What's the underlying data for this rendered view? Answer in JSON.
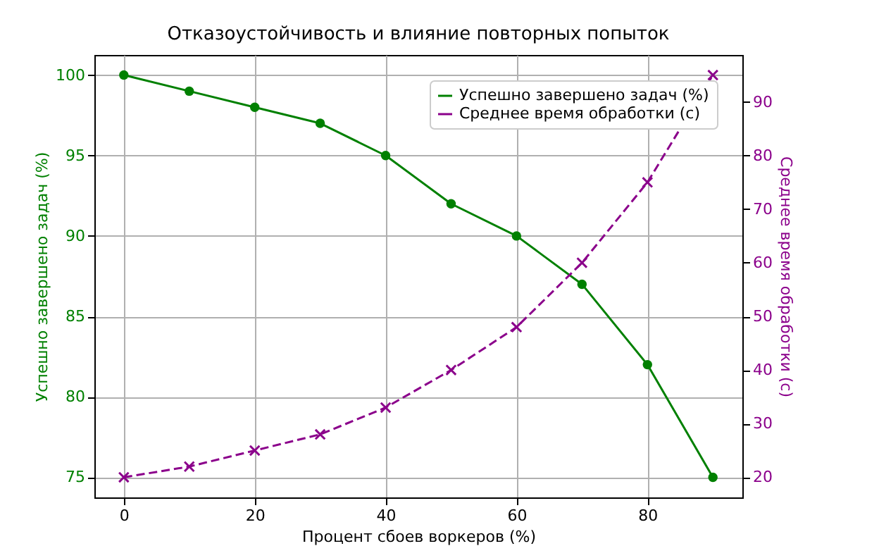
{
  "chart_data": {
    "type": "line",
    "title": "Отказоустойчивость и влияние повторных попыток",
    "xlabel": "Процент сбоев воркеров (%)",
    "ylabel": "Успешно завершено задач (%)",
    "y2label": "Среднее время обработки (с)",
    "x": [
      0,
      10,
      20,
      30,
      40,
      50,
      60,
      70,
      80,
      90
    ],
    "series": [
      {
        "name": "Успешно завершено задач (%)",
        "color": "#008000",
        "marker": "circle",
        "line_style": "solid",
        "values": [
          100,
          99,
          98,
          97,
          95,
          92,
          90,
          87,
          82,
          75
        ]
      },
      {
        "name": "Среднее время обработки (с)",
        "color": "#8b008b",
        "marker": "cross",
        "line_style": "dashed",
        "axis": "y2",
        "values": [
          20,
          22,
          25,
          28,
          33,
          40,
          48,
          60,
          75,
          95
        ]
      }
    ],
    "xlim": [
      -4.5,
      94.5
    ],
    "xticks": [
      0,
      20,
      40,
      60,
      80
    ],
    "ylim": [
      73.75,
      101.25
    ],
    "yticks": [
      75,
      80,
      85,
      90,
      95,
      100
    ],
    "y2lim": [
      16.25,
      98.75
    ],
    "y2ticks": [
      20,
      30,
      40,
      50,
      60,
      70,
      80,
      90
    ],
    "grid": true,
    "legend": "top right"
  }
}
